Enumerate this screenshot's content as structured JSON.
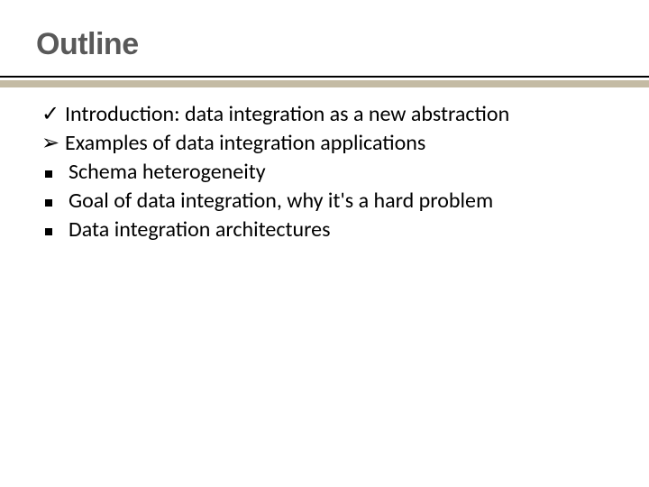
{
  "title": {
    "text": "Outline",
    "color": "#595959",
    "fontsize": 34
  },
  "rules": {
    "top_color": "#000000",
    "top_height": 2,
    "bottom_color": "#c4bba4",
    "bottom_height": 8,
    "gap": 3
  },
  "list": {
    "fontsize": 24,
    "text_color": "#000000",
    "items": [
      {
        "bullet": "check",
        "text": "Introduction: data integration as a new abstraction"
      },
      {
        "bullet": "arrow",
        "text": "Examples of data integration applications"
      },
      {
        "bullet": "square",
        "text": "Schema heterogeneity"
      },
      {
        "bullet": "square",
        "text": "Goal of data integration, why it's a hard problem"
      },
      {
        "bullet": "square",
        "text": "Data integration architectures"
      }
    ]
  }
}
